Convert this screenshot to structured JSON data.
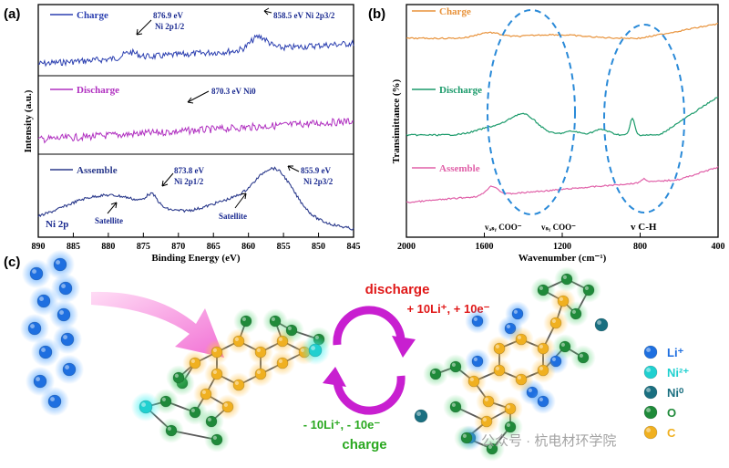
{
  "chart_data": [
    {
      "panel": "(a)",
      "type": "line",
      "xlabel": "Binding Energy (eV)",
      "ylabel": "Intensity (a.u.)",
      "xlim": [
        890,
        845
      ],
      "xticks": [
        "890",
        "885",
        "880",
        "875",
        "870",
        "865",
        "860",
        "855",
        "850",
        "845"
      ],
      "series": [
        {
          "name": "Charge",
          "color": "#2b3fb0",
          "annotations": [
            {
              "text": "876.9 eV",
              "sub": "Ni 2p1/2",
              "x": 876.9
            },
            {
              "text": "858.5 eV Ni 2p3/2",
              "x": 858.5
            }
          ]
        },
        {
          "name": "Discharge",
          "color": "#b030c0",
          "annotations": [
            {
              "text": "870.3 eV Ni0",
              "x": 870.3
            }
          ]
        },
        {
          "name": "Assemble",
          "color": "#2b3a8c",
          "annotations": [
            {
              "text": "873.8 eV",
              "sub": "Ni 2p1/2",
              "x": 873.8
            },
            {
              "text": "855.9 eV",
              "sub": "Ni 2p3/2",
              "x": 855.9
            },
            {
              "text": "Satellite",
              "x": 878
            },
            {
              "text": "Satellite",
              "x": 862
            }
          ]
        }
      ],
      "corner_label": "Ni 2p"
    },
    {
      "panel": "(b)",
      "type": "line",
      "xlabel": "Wavenumber (cm⁻¹)",
      "ylabel": "Transimittance (%)",
      "xlim": [
        2000,
        400
      ],
      "xticks": [
        "2000",
        "1600",
        "1200",
        "800",
        "400"
      ],
      "series": [
        {
          "name": "Charge",
          "color": "#e8923a"
        },
        {
          "name": "Discharge",
          "color": "#1a9a6a"
        },
        {
          "name": "Assemble",
          "color": "#e060a8"
        }
      ],
      "annotations": [
        "vₐₛᵧ COO⁻",
        "vₛᵧ COO⁻",
        "v C-H"
      ]
    }
  ],
  "scheme": {
    "panel": "(c)",
    "top_label_1": "discharge",
    "top_label_2": "+ 10Li⁺,  + 10e⁻",
    "bottom_label_1": "- 10Li⁺,  - 10e⁻",
    "bottom_label_2": "charge",
    "legend": [
      {
        "label": "Li⁺",
        "color": "#1e6fe0"
      },
      {
        "label": "Ni²⁺",
        "color": "#20d0d0"
      },
      {
        "label": "Ni⁰",
        "color": "#1a6f80"
      },
      {
        "label": "O",
        "color": "#1f8a3a"
      },
      {
        "label": "C",
        "color": "#f0b020"
      }
    ],
    "watermark": "公众号 · 杭电材环学院"
  }
}
